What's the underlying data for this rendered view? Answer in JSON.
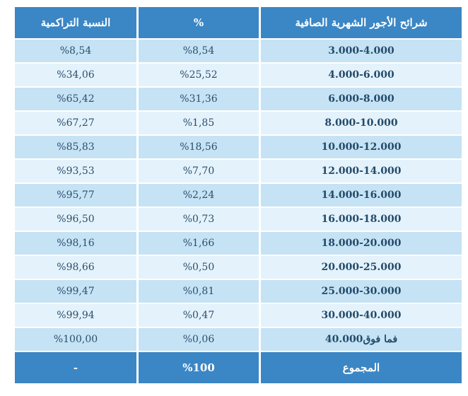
{
  "table": {
    "headers": [
      "شرائح الأجور الشهرية الصافية",
      "%",
      "النسبة التراكمية"
    ],
    "rows": [
      {
        "range": "3.000-4.000",
        "percent": "%8,54",
        "cumulative": "%8,54"
      },
      {
        "range": "4.000-6.000",
        "percent": "%25,52",
        "cumulative": "%34,06"
      },
      {
        "range": "6.000-8.000",
        "percent": "%31,36",
        "cumulative": "%65,42"
      },
      {
        "range": "8.000-10.000",
        "percent": "%1,85",
        "cumulative": "%67,27"
      },
      {
        "range": "10.000-12.000",
        "percent": "%18,56",
        "cumulative": "%85,83"
      },
      {
        "range": "12.000-14.000",
        "percent": "%7,70",
        "cumulative": "%93,53"
      },
      {
        "range": "14.000-16.000",
        "percent": "%2,24",
        "cumulative": "%95,77"
      },
      {
        "range": "16.000-18.000",
        "percent": "%0,73",
        "cumulative": "%96,50"
      },
      {
        "range": "18.000-20.000",
        "percent": "%1,66",
        "cumulative": "%98,16"
      },
      {
        "range": "20.000-25.000",
        "percent": "%0,50",
        "cumulative": "%98,66"
      },
      {
        "range": "25.000-30.000",
        "percent": "%0,81",
        "cumulative": "%99,47"
      },
      {
        "range": "30.000-40.000",
        "percent": "%0,47",
        "cumulative": "%99,94"
      },
      {
        "range": "فما فوق40.000",
        "percent": "%0,06",
        "cumulative": "%100,00"
      }
    ],
    "total": {
      "label": "المجموع",
      "percent": "%100",
      "cumulative": "-"
    }
  },
  "colors": {
    "header_bg": "#3b86c5",
    "row_odd_bg": "#c5e3f4",
    "row_even_bg": "#e4f2fb",
    "text": "#2a4f6f"
  }
}
